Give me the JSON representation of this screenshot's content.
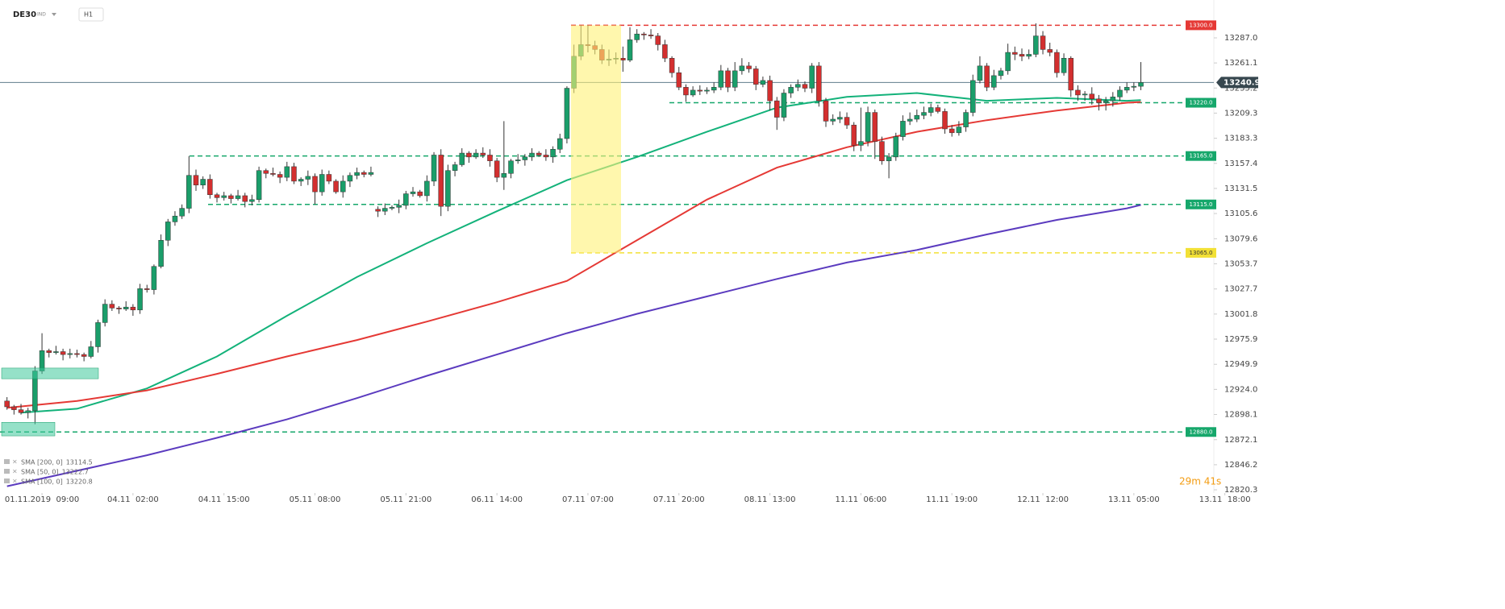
{
  "header": {
    "symbol": "DE30",
    "market": "IND",
    "timeframe": "H1"
  },
  "chart_data": {
    "type": "candlestick",
    "up_color": "#1a9e6a",
    "down_color": "#d32f2f",
    "ylim": [
      12817.0,
      13326.1
    ],
    "xlim": [
      -1,
      174.5
    ],
    "yticks": [
      {
        "value": 13287,
        "label": "13287.0"
      },
      13261.1,
      13235.2,
      13209.3,
      13183.3,
      13157.4,
      13131.5,
      13105.6,
      13079.6,
      13053.7,
      13027.7,
      13001.8,
      12975.9,
      12949.9,
      {
        "value": 12924,
        "label": "12924.0"
      },
      12898.1,
      12872.1,
      12846.2,
      12820.3
    ],
    "xticks": [
      {
        "value": 5,
        "label": "01.11.2019  09:00"
      },
      {
        "value": 18,
        "label": "04.11  02:00"
      },
      {
        "value": 31,
        "label": "04.11  15:00"
      },
      {
        "value": 44,
        "label": "05.11  08:00"
      },
      {
        "value": 57,
        "label": "05.11  21:00"
      },
      {
        "value": 70,
        "label": "06.11  14:00"
      },
      {
        "value": 83,
        "label": "07.11  07:00"
      },
      {
        "value": 96,
        "label": "07.11  20:00"
      },
      {
        "value": 109,
        "label": "08.11  13:00"
      },
      {
        "value": 122,
        "label": "11.11  06:00"
      },
      {
        "value": 135,
        "label": "11.11  19:00"
      },
      {
        "value": 148,
        "label": "12.11  12:00"
      },
      {
        "value": 161,
        "label": "13.11  05:00"
      },
      {
        "value": 174,
        "label": "13.11  18:00"
      }
    ],
    "open": [
      12912,
      12906,
      12903,
      12900,
      12902,
      12943,
      12964,
      12962,
      12963,
      12960,
      12961,
      12960,
      12958,
      12968,
      12993,
      13012,
      13008,
      13007,
      13009,
      13006,
      13028,
      13027,
      13051,
      13078,
      13097,
      13103,
      13111,
      13145,
      13135,
      13141,
      13125,
      13122,
      13124,
      13121,
      13124,
      13118,
      13120,
      13150,
      13147,
      13146,
      13143,
      13154,
      13139,
      13141,
      13144,
      13128,
      13146,
      13139,
      13128,
      13139,
      13145,
      13148,
      13146,
      13110,
      13108,
      13111,
      13112,
      13114,
      13126,
      13128,
      13124,
      13139,
      13166,
      13113,
      13150,
      13156,
      13168,
      13164,
      13168,
      13166,
      13160,
      13143,
      13147,
      13160,
      13161,
      13164,
      13168,
      13166,
      13164,
      13172,
      13183,
      13235,
      13268,
      13280,
      13279,
      13275,
      13264,
      13265,
      13266,
      13264,
      13285,
      13291,
      13290,
      13289,
      13280,
      13266,
      13251,
      13236,
      13228,
      13233,
      13232,
      13233,
      13236,
      13253,
      13236,
      13253,
      13258,
      13255,
      13239,
      13243,
      13222,
      13205,
      13230,
      13236,
      13239,
      13235,
      13258,
      13222,
      13201,
      13203,
      13205,
      13197,
      13176,
      13180,
      13210,
      13180,
      13160,
      13164,
      13185,
      13201,
      13203,
      13207,
      13210,
      13215,
      13211,
      13193,
      13189,
      13195,
      13210,
      13243,
      13258,
      13236,
      13248,
      13253,
      13272,
      13270,
      13268,
      13270,
      13289,
      13275,
      13272,
      13251,
      13266,
      13233,
      13228,
      13229,
      13224,
      13220,
      13222,
      13226,
      13233,
      13236,
      13237
    ],
    "high": [
      12916,
      12908,
      12909,
      12905,
      12948,
      12982,
      12966,
      12969,
      12966,
      12966,
      12965,
      12962,
      12974,
      12996,
      13017,
      13016,
      13010,
      13015,
      13012,
      13033,
      13032,
      13053,
      13084,
      13100,
      13108,
      13115,
      13165,
      13151,
      13144,
      13146,
      13127,
      13128,
      13126,
      13130,
      13127,
      13125,
      13154,
      13152,
      13153,
      13149,
      13159,
      13158,
      13143,
      13150,
      13147,
      13151,
      13150,
      13141,
      13145,
      13148,
      13153,
      13150,
      13154,
      13113,
      13116,
      13114,
      13120,
      13129,
      13133,
      13130,
      13145,
      13169,
      13172,
      13156,
      13159,
      13173,
      13170,
      13172,
      13174,
      13172,
      13163,
      13201,
      13162,
      13167,
      13167,
      13173,
      13170,
      13172,
      13175,
      13188,
      13237,
      13280,
      13300,
      13300,
      13284,
      13280,
      13275,
      13272,
      13278,
      13298,
      13296,
      13293,
      13296,
      13292,
      13285,
      13268,
      13257,
      13239,
      13237,
      13238,
      13236,
      13241,
      13259,
      13256,
      13262,
      13266,
      13262,
      13258,
      13247,
      13248,
      13226,
      13234,
      13239,
      13244,
      13242,
      13261,
      13262,
      13225,
      13208,
      13211,
      13210,
      13200,
      13215,
      13216,
      13213,
      13185,
      13168,
      13189,
      13207,
      13210,
      13213,
      13216,
      13219,
      13218,
      13214,
      13197,
      13201,
      13213,
      13249,
      13268,
      13261,
      13254,
      13256,
      13281,
      13278,
      13276,
      13275,
      13302,
      13294,
      13282,
      13275,
      13271,
      13268,
      13238,
      13232,
      13236,
      13228,
      13226,
      13231,
      13237,
      13241,
      13241,
      13262
    ],
    "low": [
      12903,
      12898,
      12898,
      12894,
      12888,
      12940,
      12957,
      12960,
      12954,
      12956,
      12957,
      12953,
      12956,
      12962,
      12989,
      13005,
      13002,
      13005,
      13000,
      13002,
      13024,
      13022,
      13049,
      13072,
      13093,
      13100,
      13106,
      13129,
      13131,
      13121,
      13117,
      13119,
      13116,
      13119,
      13112,
      13114,
      13117,
      13142,
      13144,
      13137,
      13139,
      13136,
      13134,
      13135,
      13115,
      13124,
      13136,
      13126,
      13122,
      13133,
      13141,
      13143,
      13144,
      13102,
      13104,
      13109,
      13106,
      13110,
      13123,
      13122,
      13118,
      13134,
      13103,
      13108,
      13144,
      13154,
      13158,
      13162,
      13163,
      13154,
      13138,
      13130,
      13142,
      13157,
      13155,
      13160,
      13164,
      13160,
      13158,
      13168,
      13178,
      13230,
      13264,
      13272,
      13270,
      13260,
      13258,
      13260,
      13252,
      13262,
      13282,
      13285,
      13286,
      13274,
      13262,
      13246,
      13233,
      13221,
      13226,
      13228,
      13229,
      13230,
      13233,
      13231,
      13232,
      13249,
      13251,
      13233,
      13236,
      13212,
      13192,
      13201,
      13225,
      13232,
      13231,
      13230,
      13216,
      13195,
      13197,
      13199,
      13193,
      13170,
      13170,
      13175,
      13162,
      13156,
      13142,
      13160,
      13181,
      13197,
      13200,
      13203,
      13206,
      13209,
      13188,
      13185,
      13186,
      13190,
      13206,
      13240,
      13232,
      13233,
      13244,
      13249,
      13264,
      13263,
      13265,
      13267,
      13270,
      13268,
      13246,
      13248,
      13226,
      13222,
      13222,
      13218,
      13212,
      13212,
      13216,
      13222,
      13230,
      13232,
      13233
    ],
    "close": [
      12906,
      12903,
      12900,
      12902,
      12943,
      12964,
      12962,
      12963,
      12960,
      12961,
      12960,
      12958,
      12968,
      12993,
      13012,
      13008,
      13007,
      13009,
      13006,
      13028,
      13027,
      13051,
      13078,
      13097,
      13103,
      13111,
      13145,
      13135,
      13141,
      13125,
      13122,
      13124,
      13121,
      13124,
      13118,
      13120,
      13150,
      13147,
      13146,
      13143,
      13154,
      13139,
      13141,
      13144,
      13128,
      13146,
      13139,
      13128,
      13139,
      13145,
      13148,
      13146,
      13148,
      13108,
      13111,
      13112,
      13114,
      13126,
      13128,
      13124,
      13139,
      13166,
      13113,
      13150,
      13156,
      13168,
      13164,
      13168,
      13166,
      13160,
      13143,
      13147,
      13160,
      13161,
      13164,
      13168,
      13166,
      13164,
      13172,
      13183,
      13235,
      13268,
      13280,
      13279,
      13275,
      13264,
      13265,
      13266,
      13264,
      13285,
      13291,
      13290,
      13289,
      13280,
      13266,
      13251,
      13236,
      13228,
      13233,
      13232,
      13233,
      13236,
      13253,
      13236,
      13253,
      13258,
      13255,
      13239,
      13243,
      13222,
      13205,
      13230,
      13236,
      13239,
      13235,
      13258,
      13222,
      13201,
      13203,
      13205,
      13197,
      13176,
      13180,
      13210,
      13180,
      13160,
      13164,
      13185,
      13201,
      13203,
      13207,
      13210,
      13215,
      13211,
      13193,
      13189,
      13195,
      13210,
      13243,
      13258,
      13236,
      13248,
      13253,
      13272,
      13270,
      13268,
      13270,
      13289,
      13275,
      13272,
      13251,
      13266,
      13233,
      13228,
      13229,
      13224,
      13220,
      13222,
      13226,
      13233,
      13236,
      13237,
      13240.9
    ],
    "series": [
      {
        "name": "SMA [200, 0]",
        "color": "#5b3bbf",
        "legend_value": 13114.5,
        "x": [
          0,
          10,
          20,
          30,
          40,
          50,
          60,
          70,
          80,
          90,
          100,
          110,
          120,
          130,
          140,
          150,
          160,
          162
        ],
        "values": [
          12824,
          12840,
          12856,
          12874,
          12893,
          12915,
          12938,
          12960,
          12982,
          13002,
          13020,
          13038,
          13055,
          13068,
          13084,
          13099,
          13111,
          13114.5
        ]
      },
      {
        "name": "SMA [50, 0]",
        "color": "#13b27a",
        "legend_value": 13222.7,
        "x": [
          2,
          10,
          20,
          30,
          40,
          50,
          60,
          70,
          80,
          90,
          100,
          110,
          120,
          130,
          140,
          150,
          160,
          162
        ],
        "values": [
          12900,
          12904,
          12925,
          12958,
          13000,
          13040,
          13075,
          13108,
          13140,
          13164,
          13190,
          13215,
          13226,
          13230,
          13222,
          13225,
          13222,
          13222.7
        ]
      },
      {
        "name": "SMA [100, 0]",
        "color": "#e53935",
        "legend_value": 13220.8,
        "x": [
          0,
          10,
          20,
          30,
          40,
          50,
          60,
          70,
          80,
          90,
          100,
          110,
          120,
          130,
          140,
          150,
          160,
          162
        ],
        "values": [
          12905,
          12912,
          12923,
          12940,
          12958,
          12975,
          12994,
          13014,
          13036,
          13078,
          13120,
          13153,
          13174,
          13190,
          13202,
          13212,
          13220,
          13220.8
        ]
      }
    ],
    "levels": [
      {
        "value": 13300,
        "label": "13300.0",
        "color": "#e53935"
      },
      {
        "value": 13220,
        "label": "13220.0",
        "color": "#16a76b"
      },
      {
        "value": 13165,
        "label": "13165.0",
        "color": "#16a76b"
      },
      {
        "value": 13115,
        "label": "13115.0",
        "color": "#16a76b"
      },
      {
        "value": 13065,
        "label": "13065.0",
        "color": "#f2e035"
      },
      {
        "value": 12880,
        "label": "12880.0",
        "color": "#16a76b"
      }
    ],
    "zones": [
      {
        "high": 13300,
        "low": 13065,
        "color": "#fff176"
      },
      {
        "high": 12946,
        "low": 12935,
        "color": "#3ec99a"
      },
      {
        "high": 12890,
        "low": 12876,
        "color": "#3ec99a"
      }
    ],
    "last_price": 13240.9,
    "countdown": "29m 41s"
  }
}
